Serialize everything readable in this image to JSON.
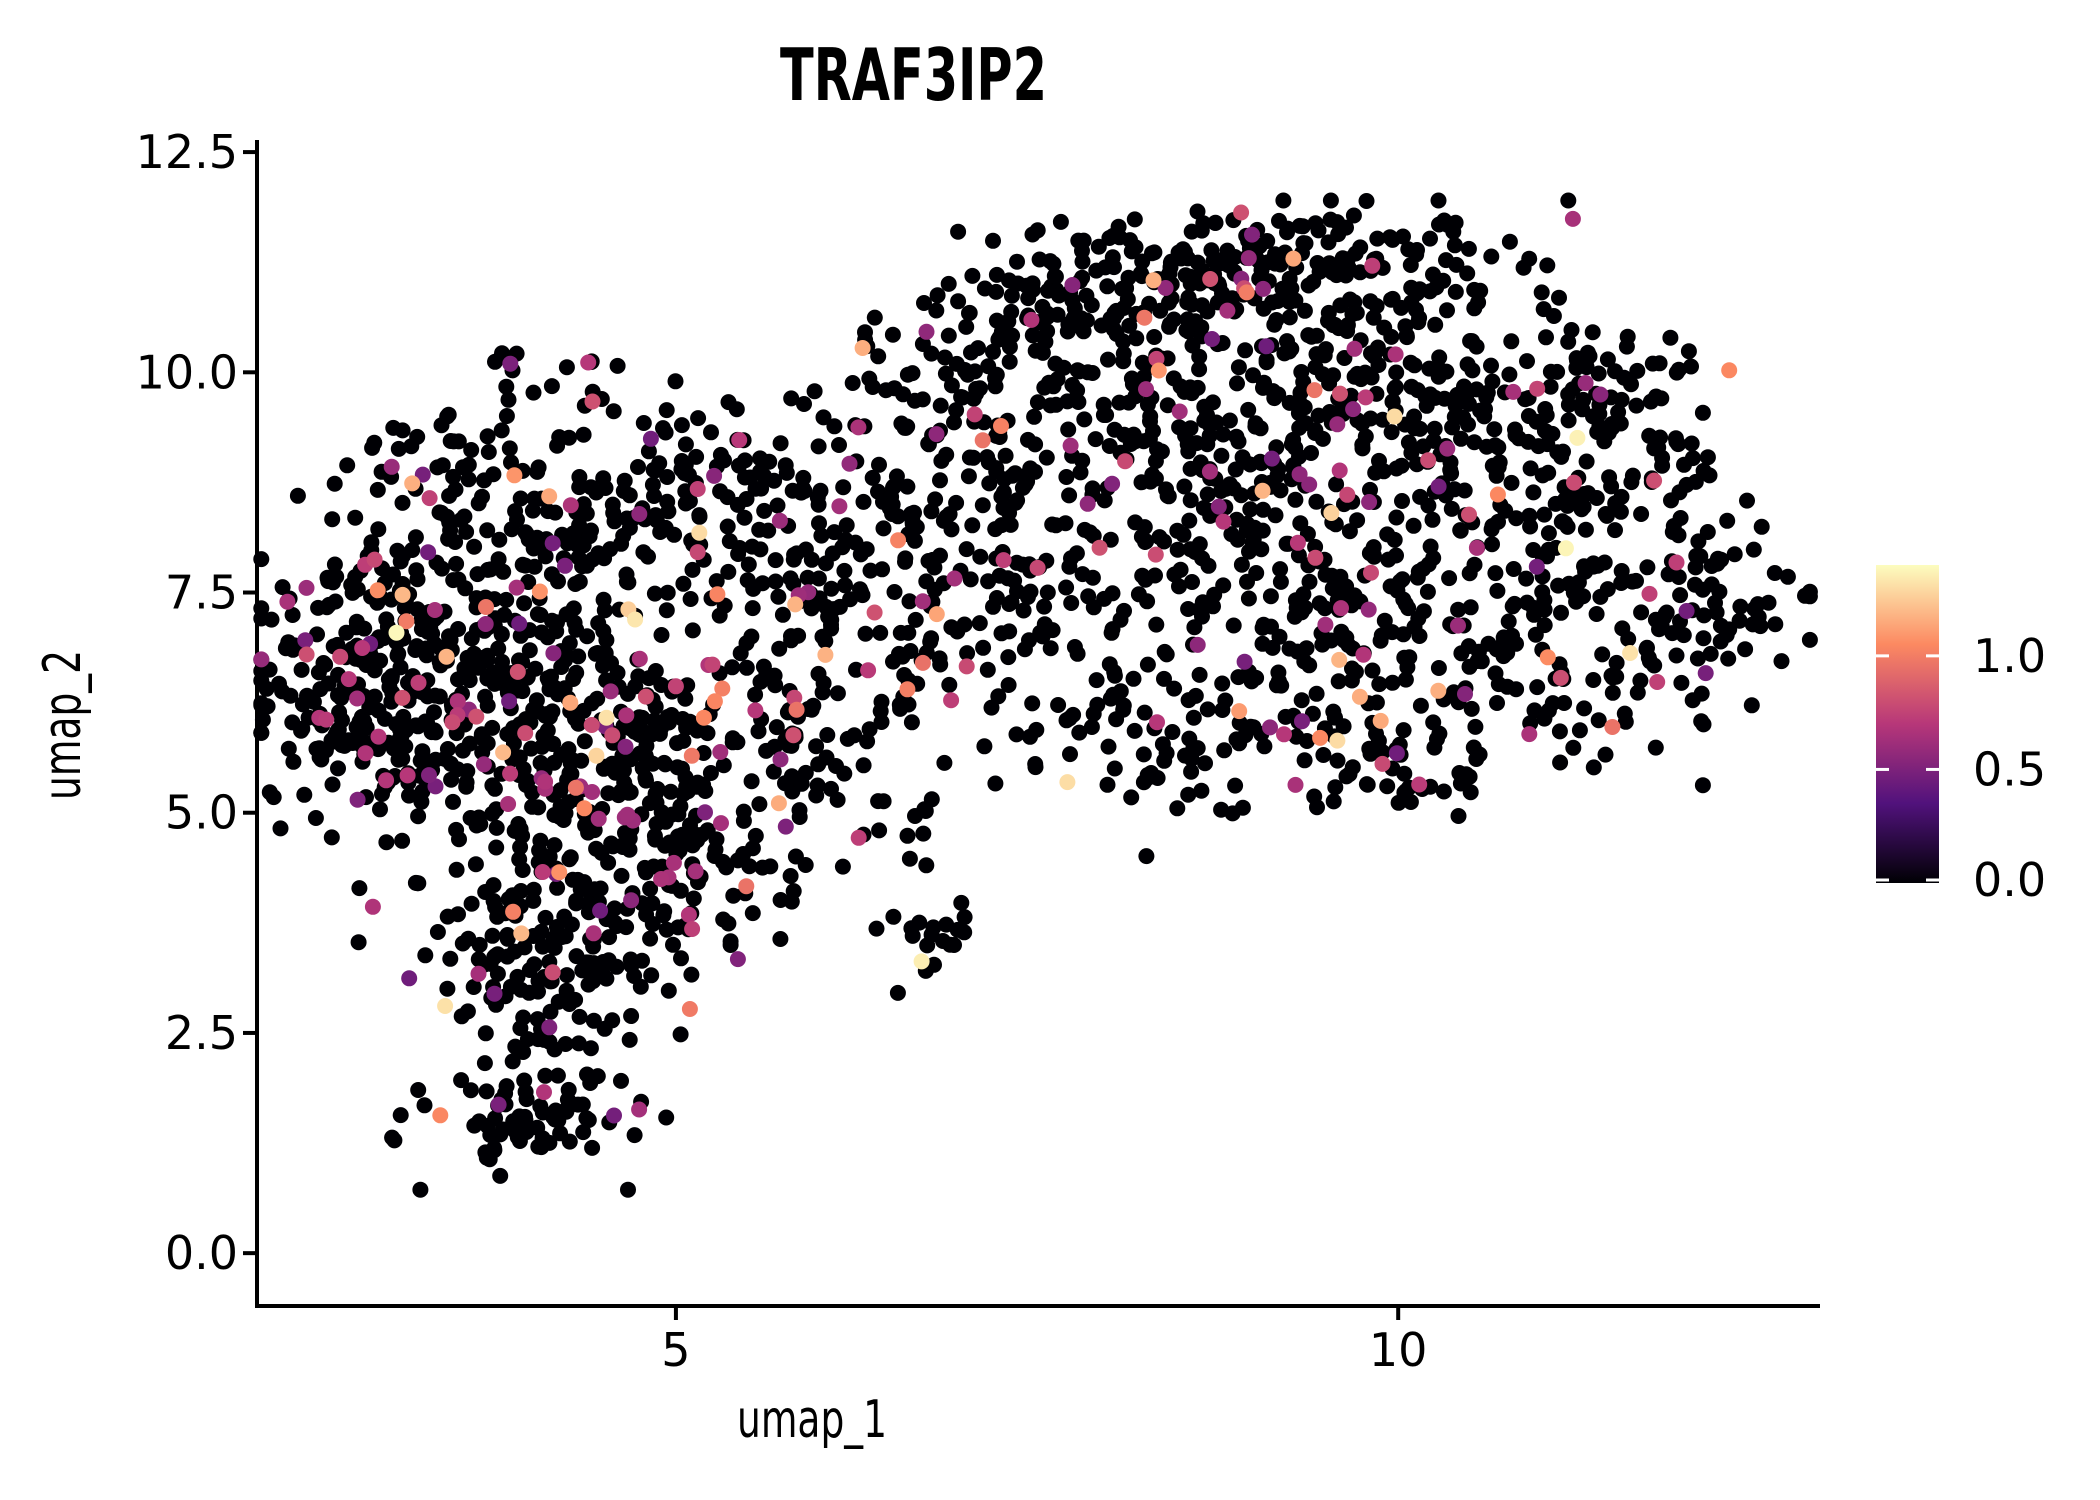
{
  "chart_data": {
    "type": "scatter",
    "title": "TRAF3IP2",
    "xlabel": "umap_1",
    "ylabel": "umap_2",
    "x_ticks": [
      5,
      10
    ],
    "x_tick_labels": [
      "5",
      "10"
    ],
    "y_ticks": [
      0.0,
      2.5,
      5.0,
      7.5,
      10.0,
      12.5
    ],
    "y_tick_labels": [
      "0.0",
      "2.5",
      "5.0",
      "7.5",
      "10.0",
      "12.5"
    ],
    "xlim": [
      2.1,
      12.92
    ],
    "ylim": [
      -0.6,
      12.66
    ],
    "grid": false,
    "legend_position": "right",
    "point_radius_px": 8,
    "point_color_zero": "#000004",
    "colormap": {
      "name": "magma",
      "stops": [
        [
          0.0,
          "#000004"
        ],
        [
          0.25,
          "#51127c"
        ],
        [
          0.5,
          "#b73779"
        ],
        [
          0.75,
          "#fc8961"
        ],
        [
          1.0,
          "#fcfdbf"
        ]
      ]
    },
    "colorbar": {
      "domain": [
        0.0,
        1.4
      ],
      "ticks": [
        0.0,
        0.5,
        1.0
      ],
      "tick_labels": [
        "0.0",
        "0.5",
        "1.0"
      ],
      "tick_color": "#ffffff"
    },
    "expression_sampler": {
      "p_magenta": 0.74,
      "magenta_range": [
        0.45,
        0.82
      ],
      "p_orange": 0.22,
      "orange_range": [
        0.95,
        1.2
      ],
      "p_peak": 0.04,
      "peak_range": [
        1.25,
        1.4
      ]
    },
    "seed": 7,
    "cluster_fields": [
      "center_x",
      "center_y",
      "sd_x",
      "sd_y",
      "n_cells",
      "fraction_expressing"
    ],
    "clusters": [
      [
        3.15,
        6.4,
        0.55,
        0.75,
        190,
        0.11
      ],
      [
        4.0,
        6.1,
        0.6,
        0.7,
        190,
        0.11
      ],
      [
        4.6,
        5.3,
        0.55,
        0.6,
        120,
        0.11
      ],
      [
        3.6,
        7.5,
        0.7,
        0.55,
        130,
        0.11
      ],
      [
        2.65,
        6.1,
        0.3,
        0.65,
        65,
        0.11
      ],
      [
        4.4,
        8.6,
        0.55,
        0.5,
        80,
        0.09
      ],
      [
        3.4,
        8.8,
        0.38,
        0.42,
        50,
        0.09
      ],
      [
        4.1,
        9.95,
        0.25,
        0.28,
        18,
        0.06
      ],
      [
        5.3,
        8.8,
        0.45,
        0.45,
        60,
        0.08
      ],
      [
        5.45,
        5.9,
        0.55,
        0.65,
        110,
        0.11
      ],
      [
        5.9,
        8.0,
        0.45,
        0.6,
        65,
        0.09
      ],
      [
        6.1,
        6.7,
        0.33,
        0.65,
        45,
        0.09
      ],
      [
        4.3,
        4.05,
        0.5,
        0.5,
        80,
        0.1
      ],
      [
        4.0,
        3.2,
        0.4,
        0.45,
        55,
        0.08
      ],
      [
        4.05,
        2.3,
        0.3,
        0.4,
        35,
        0.06
      ],
      [
        3.95,
        1.45,
        0.42,
        0.3,
        70,
        0.07
      ],
      [
        4.65,
        3.6,
        0.5,
        0.45,
        45,
        0.1
      ],
      [
        5.2,
        4.35,
        0.5,
        0.4,
        40,
        0.08
      ],
      [
        6.75,
        3.6,
        0.15,
        0.27,
        20,
        0.15
      ],
      [
        6.5,
        4.9,
        0.15,
        0.4,
        8,
        0.1
      ],
      [
        6.8,
        8.7,
        0.45,
        0.7,
        60,
        0.09
      ],
      [
        6.8,
        7.3,
        0.35,
        0.6,
        35,
        0.09
      ],
      [
        6.7,
        9.9,
        0.45,
        0.4,
        22,
        0.05
      ],
      [
        7.3,
        10.3,
        0.5,
        0.45,
        30,
        0.05
      ],
      [
        8.9,
        11.35,
        0.55,
        0.25,
        95,
        0.05
      ],
      [
        8.35,
        10.75,
        0.65,
        0.4,
        85,
        0.06
      ],
      [
        9.6,
        10.85,
        0.55,
        0.45,
        80,
        0.06
      ],
      [
        7.9,
        9.6,
        0.75,
        0.65,
        135,
        0.085
      ],
      [
        9.3,
        9.3,
        0.75,
        0.7,
        150,
        0.085
      ],
      [
        10.4,
        9.9,
        0.55,
        0.55,
        85,
        0.085
      ],
      [
        8.6,
        8.1,
        0.75,
        0.7,
        145,
        0.085
      ],
      [
        9.9,
        7.0,
        0.65,
        0.65,
        145,
        0.085
      ],
      [
        10.9,
        8.6,
        0.55,
        0.65,
        95,
        0.085
      ],
      [
        11.65,
        9.0,
        0.42,
        0.5,
        55,
        0.085
      ],
      [
        12.15,
        7.45,
        0.38,
        0.48,
        65,
        0.09
      ],
      [
        11.3,
        6.6,
        0.55,
        0.55,
        80,
        0.085
      ],
      [
        8.6,
        5.9,
        0.65,
        0.45,
        80,
        0.085
      ],
      [
        9.9,
        5.6,
        0.55,
        0.32,
        50,
        0.07
      ],
      [
        7.4,
        7.4,
        0.4,
        0.75,
        65,
        0.085
      ],
      [
        7.6,
        10.9,
        0.38,
        0.38,
        32,
        0.06
      ],
      [
        10.3,
        11.25,
        0.33,
        0.28,
        28,
        0.05
      ],
      [
        11.5,
        10.0,
        0.38,
        0.38,
        35,
        0.07
      ]
    ]
  },
  "style_colors": {
    "axis_line": "#000000",
    "tick_mark": "#000000",
    "text": "#000000",
    "background": "#ffffff"
  }
}
